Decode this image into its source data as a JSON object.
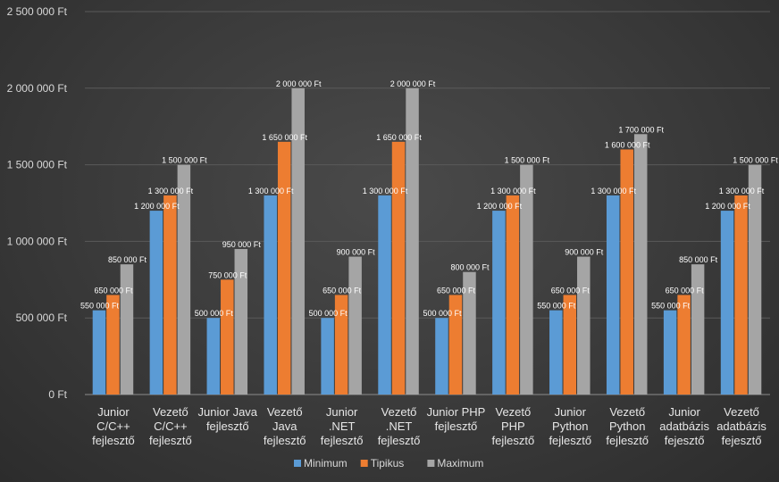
{
  "chart_data": {
    "type": "bar",
    "categories": [
      "Junior C/C++ fejlesztő",
      "Vezető C/C++ fejlesztő",
      "Junior Java fejlesztő",
      "Vezető Java fejlesztő",
      "Junior .NET fejlesztő",
      "Vezető .NET fejlesztő",
      "Junior PHP fejlesztő",
      "Vezető PHP fejlesztő",
      "Junior Python fejlesztő",
      "Vezető Python fejlesztő",
      "Junior adatbázis fejesztő",
      "Vezető adatbázis fejesztő"
    ],
    "category_lines": [
      [
        "Junior",
        "C/C++",
        "fejlesztő"
      ],
      [
        "Vezető",
        "C/C++",
        "fejlesztő"
      ],
      [
        "Junior Java",
        "fejlesztő"
      ],
      [
        "Vezető",
        "Java",
        "fejlesztő"
      ],
      [
        "Junior",
        ".NET",
        "fejlesztő"
      ],
      [
        "Vezető",
        ".NET",
        "fejlesztő"
      ],
      [
        "Junior PHP",
        "fejlesztő"
      ],
      [
        "Vezető",
        "PHP",
        "fejlesztő"
      ],
      [
        "Junior",
        "Python",
        "fejlesztő"
      ],
      [
        "Vezető",
        "Python",
        "fejlesztő"
      ],
      [
        "Junior",
        "adatbázis",
        "fejesztő"
      ],
      [
        "Vezető",
        "adatbázis",
        "fejesztő"
      ]
    ],
    "series": [
      {
        "name": "Minimum",
        "color": "#5b9bd5",
        "values": [
          550000,
          1200000,
          500000,
          1300000,
          500000,
          1300000,
          500000,
          1200000,
          550000,
          1300000,
          550000,
          1200000
        ],
        "labels": [
          "550 000 Ft",
          "1 200 000 Ft",
          "500 000 Ft",
          "1 300 000 Ft",
          "500 000 Ft",
          "1 300 000 Ft",
          "500 000 Ft",
          "1 200 000 Ft",
          "550 000 Ft",
          "1 300 000 Ft",
          "550 000 Ft",
          "1 200 000 Ft"
        ]
      },
      {
        "name": "Tipikus",
        "color": "#ed7d31",
        "values": [
          650000,
          1300000,
          750000,
          1650000,
          650000,
          1650000,
          650000,
          1300000,
          650000,
          1600000,
          650000,
          1300000
        ],
        "labels": [
          "650 000 Ft",
          "1 300 000 Ft",
          "750 000 Ft",
          "1 650 000 Ft",
          "650 000 Ft",
          "1 650 000 Ft",
          "650 000 Ft",
          "1 300 000 Ft",
          "650 000 Ft",
          "1 600 000 Ft",
          "650 000 Ft",
          "1 300 000 Ft"
        ]
      },
      {
        "name": "Maximum",
        "color": "#a5a5a5",
        "values": [
          850000,
          1500000,
          950000,
          2000000,
          900000,
          2000000,
          800000,
          1500000,
          900000,
          1700000,
          850000,
          1500000
        ],
        "labels": [
          "850 000 Ft",
          "1 500 000 Ft",
          "950 000 Ft",
          "2 000 000 Ft",
          "900 000 Ft",
          "2 000 000 Ft",
          "800 000 Ft",
          "1 500 000 Ft",
          "900 000 Ft",
          "1 700 000 Ft",
          "850 000 Ft",
          "1 500 000 Ft"
        ]
      }
    ],
    "y_ticks": [
      0,
      500000,
      1000000,
      1500000,
      2000000,
      2500000
    ],
    "y_tick_labels": [
      "0 Ft",
      "500 000 Ft",
      "1 000 000 Ft",
      "1 500 000 Ft",
      "2 000 000 Ft",
      "2 500 000 Ft"
    ],
    "ylim": [
      0,
      2500000
    ],
    "grid": true,
    "legend_position": "bottom",
    "title": "",
    "xlabel": "",
    "ylabel": ""
  },
  "colors": {
    "gridline": "#5a5a5a",
    "axis": "#8c8c8c"
  }
}
